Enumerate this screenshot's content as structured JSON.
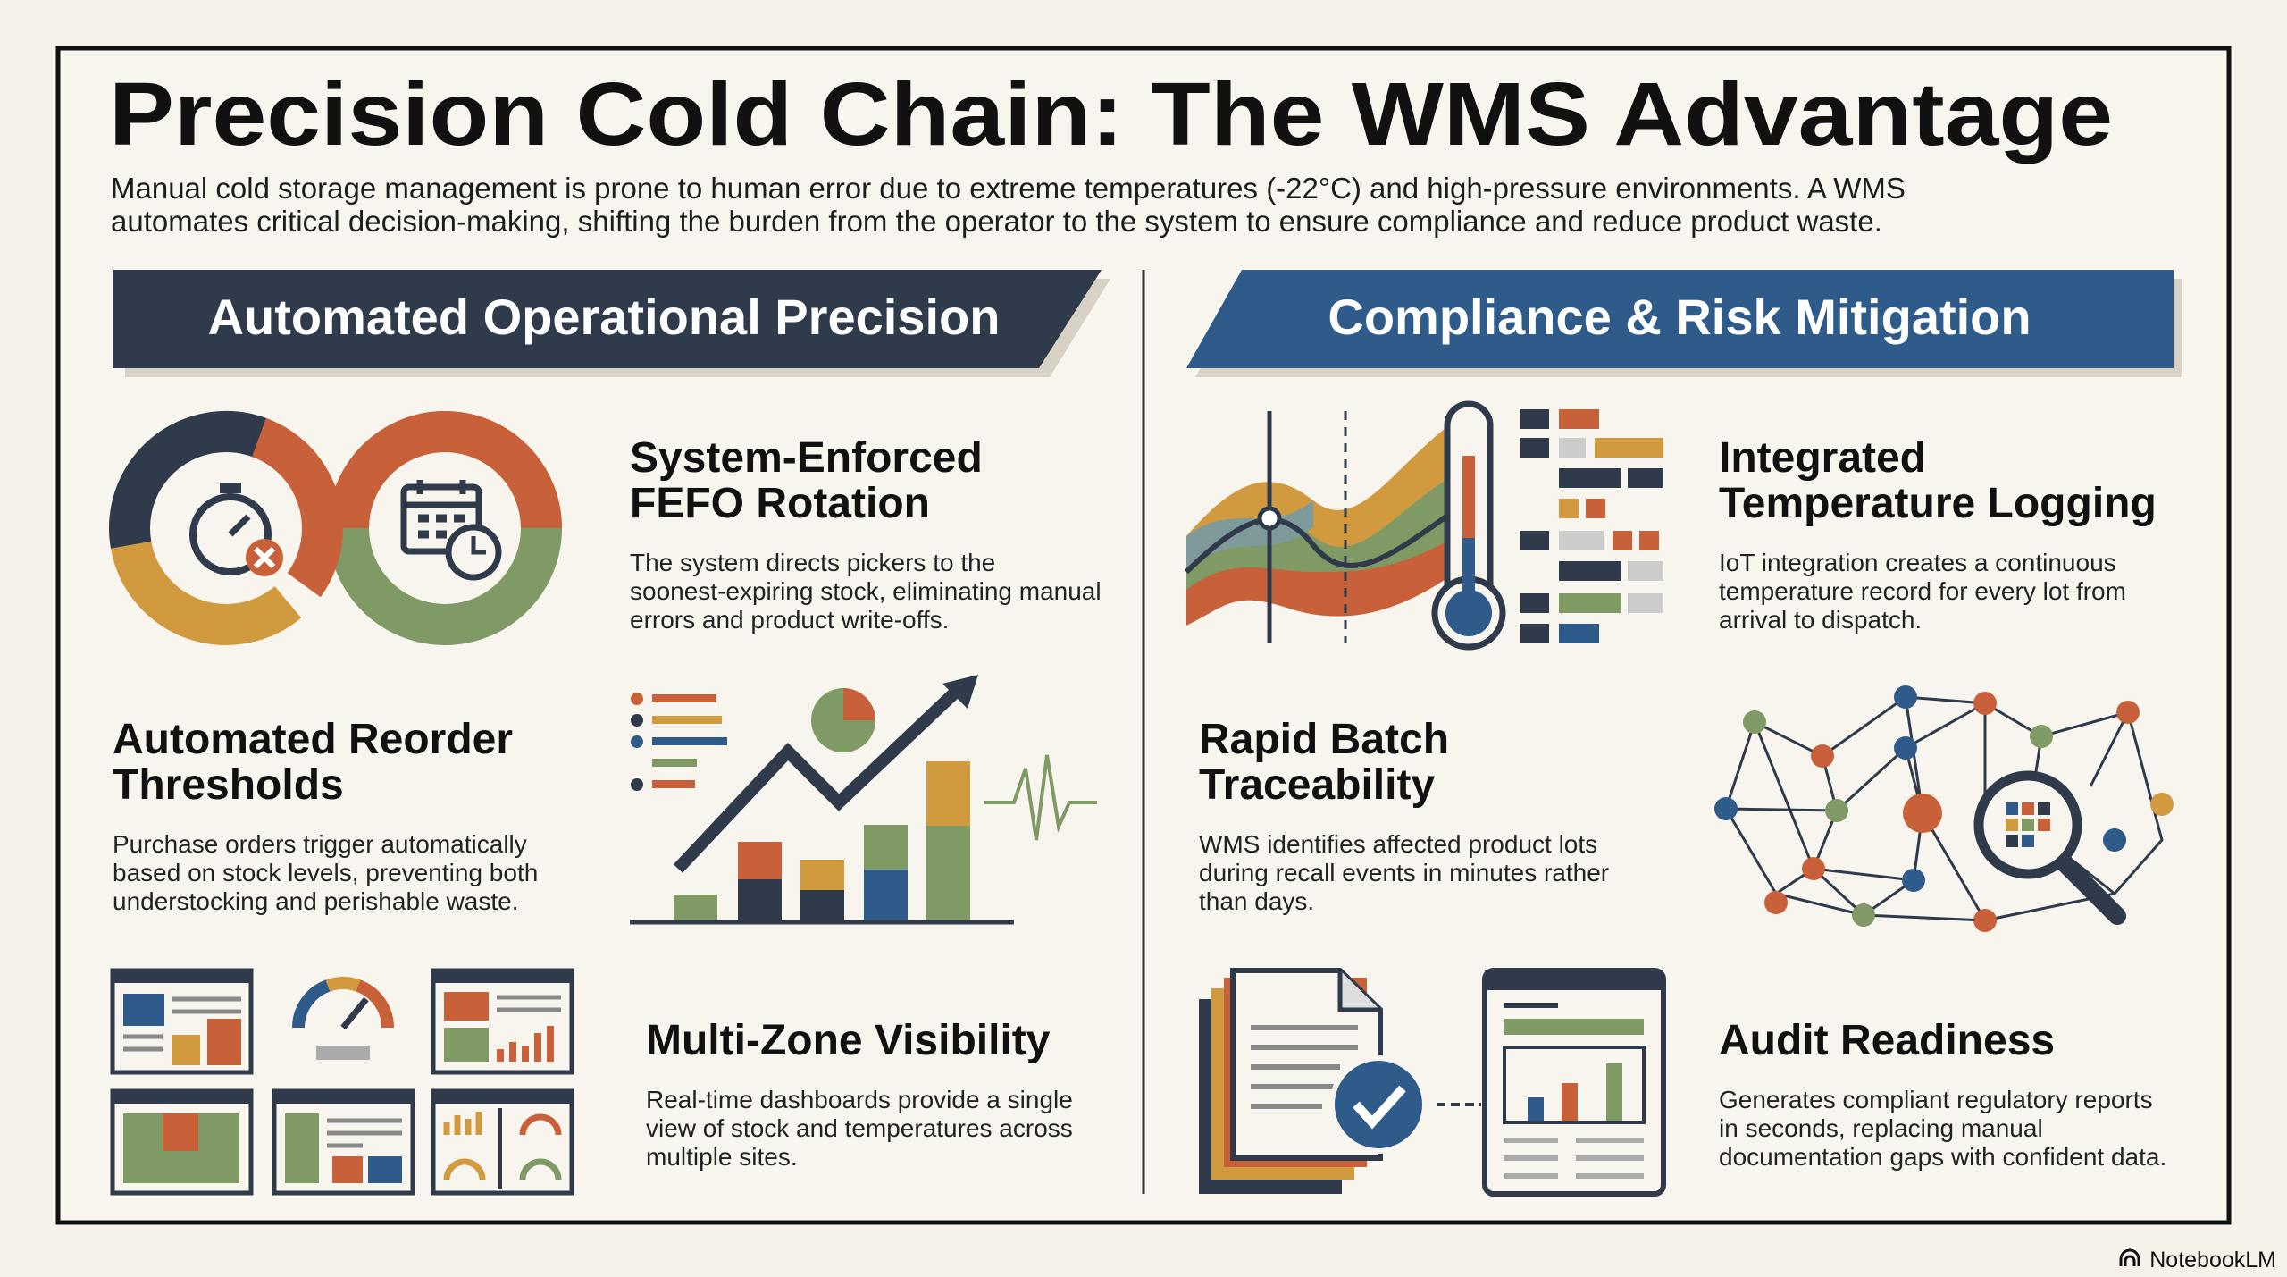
{
  "header": {
    "title": "Precision Cold Chain: The WMS Advantage",
    "subtitle_lines": [
      "Manual cold storage management is prone to human error due to extreme temperatures (-22°C) and high-pressure environments. A WMS",
      "automates critical decision-making, shifting the burden from the operator to the system to ensure compliance and reduce product waste."
    ]
  },
  "sections": [
    {
      "title": "Automated Operational Precision",
      "items": [
        {
          "title_lines": [
            "System-Enforced",
            "FEFO Rotation"
          ],
          "body_lines": [
            "The system directs pickers to the",
            "soonest-expiring stock, eliminating manual",
            "errors and product write-offs."
          ]
        },
        {
          "title_lines": [
            "Automated Reorder",
            "Thresholds"
          ],
          "body_lines": [
            "Purchase orders trigger automatically",
            "based on stock levels, preventing both",
            "understocking and perishable waste."
          ]
        },
        {
          "title_lines": [
            "Multi-Zone Visibility"
          ],
          "body_lines": [
            "Real-time dashboards provide a single",
            "view of stock and temperatures across",
            "multiple sites."
          ]
        }
      ]
    },
    {
      "title": "Compliance & Risk Mitigation",
      "items": [
        {
          "title_lines": [
            "Integrated",
            "Temperature Logging"
          ],
          "body_lines": [
            "IoT integration creates a continuous",
            "temperature record for every lot from",
            "arrival to dispatch."
          ]
        },
        {
          "title_lines": [
            "Rapid Batch",
            "Traceability"
          ],
          "body_lines": [
            "WMS identifies affected product lots",
            "during recall events in minutes rather",
            "than days."
          ]
        },
        {
          "title_lines": [
            "Audit Readiness"
          ],
          "body_lines": [
            "Generates compliant regulatory reports",
            "in seconds, replacing manual",
            "documentation gaps with confident data."
          ]
        }
      ]
    }
  ],
  "footer": {
    "brand": "NotebookLM"
  }
}
